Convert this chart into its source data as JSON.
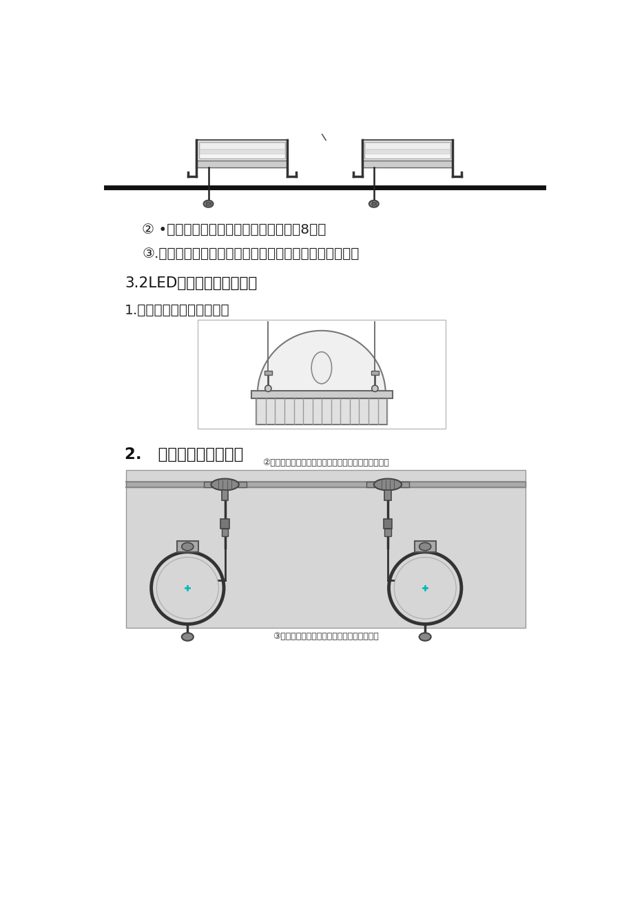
{
  "bg_color": "#ffffff",
  "text_color": "#1a1a1a",
  "line1": "② •在安装接线时一个分支电源最多串接8台。",
  "line2": "③.确认安装无误，无电气短路后，接通相应的控制电源。",
  "line3": "3.2LED点光源的安装方法：",
  "line4": "1.首先将点光源固定牢固。",
  "line5": "2.   将连接线可靠连接。",
  "caption1": "②单端出线时，点光源与电源线或电源控制线相互连接",
  "caption2": "③２头出公母接时，点光源之间公母对接即可"
}
